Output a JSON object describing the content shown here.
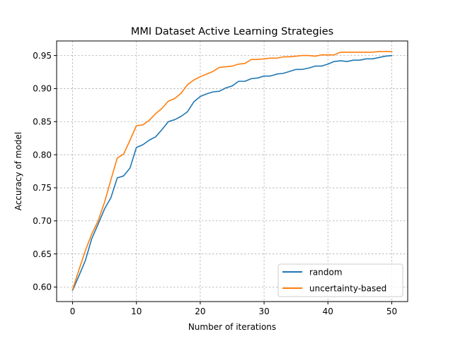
{
  "chart_data": {
    "type": "line",
    "title": "MMI Dataset Active Learning Strategies",
    "xlabel": "Number of iterations",
    "ylabel": "Accuracy of model",
    "xlim": [
      -2.5,
      52.5
    ],
    "ylim": [
      0.578,
      0.972
    ],
    "xticks": [
      0,
      10,
      20,
      30,
      40,
      50
    ],
    "yticks": [
      0.6,
      0.65,
      0.7,
      0.75,
      0.8,
      0.85,
      0.9,
      0.95
    ],
    "ytick_labels": [
      "0.60",
      "0.65",
      "0.70",
      "0.75",
      "0.80",
      "0.85",
      "0.90",
      "0.95"
    ],
    "grid": true,
    "legend_position": "lower-right",
    "x": [
      0,
      1,
      2,
      3,
      4,
      5,
      6,
      7,
      8,
      9,
      10,
      11,
      12,
      13,
      14,
      15,
      16,
      17,
      18,
      19,
      20,
      21,
      22,
      23,
      24,
      25,
      26,
      27,
      28,
      29,
      30,
      31,
      32,
      33,
      34,
      35,
      36,
      37,
      38,
      39,
      40,
      41,
      42,
      43,
      44,
      45,
      46,
      47,
      48,
      49,
      50
    ],
    "series": [
      {
        "name": "random",
        "color": "#1f77b4",
        "values": [
          0.595,
          0.617,
          0.64,
          0.673,
          0.695,
          0.718,
          0.735,
          0.765,
          0.768,
          0.78,
          0.811,
          0.815,
          0.822,
          0.827,
          0.838,
          0.85,
          0.853,
          0.858,
          0.865,
          0.88,
          0.888,
          0.892,
          0.895,
          0.896,
          0.901,
          0.904,
          0.911,
          0.911,
          0.915,
          0.916,
          0.919,
          0.919,
          0.922,
          0.923,
          0.926,
          0.929,
          0.929,
          0.931,
          0.934,
          0.934,
          0.937,
          0.941,
          0.942,
          0.941,
          0.943,
          0.943,
          0.945,
          0.945,
          0.947,
          0.949,
          0.95
        ]
      },
      {
        "name": "uncertainty-based",
        "color": "#ff7f0e",
        "values": [
          0.596,
          0.626,
          0.655,
          0.68,
          0.7,
          0.728,
          0.762,
          0.795,
          0.801,
          0.822,
          0.844,
          0.845,
          0.852,
          0.862,
          0.87,
          0.881,
          0.885,
          0.893,
          0.906,
          0.913,
          0.918,
          0.922,
          0.926,
          0.932,
          0.933,
          0.934,
          0.937,
          0.938,
          0.944,
          0.944,
          0.945,
          0.946,
          0.946,
          0.948,
          0.948,
          0.949,
          0.95,
          0.95,
          0.949,
          0.951,
          0.951,
          0.951,
          0.955,
          0.955,
          0.955,
          0.955,
          0.955,
          0.955,
          0.956,
          0.956,
          0.956
        ]
      }
    ]
  }
}
